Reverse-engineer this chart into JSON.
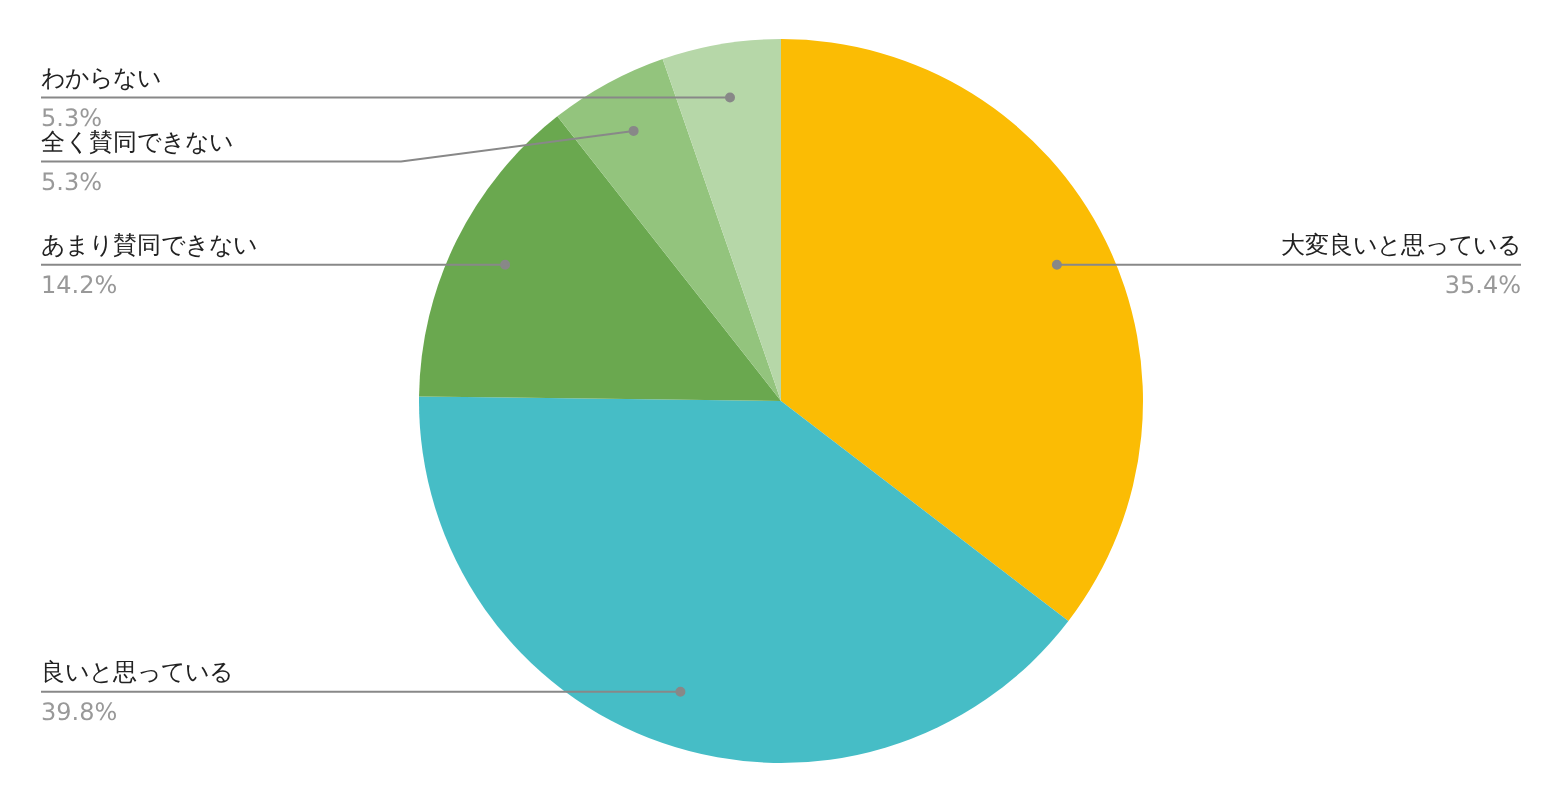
{
  "chart_data": {
    "type": "pie",
    "categories": [
      "大変良いと思っている",
      "良いと思っている",
      "あまり賛同できない",
      "全く賛同できない",
      "わからない"
    ],
    "values": [
      35.4,
      39.8,
      14.2,
      5.3,
      5.3
    ],
    "colors": [
      "#fbbc04",
      "#46bdc6",
      "#6aa84f",
      "#93c47d",
      "#b6d7a8"
    ],
    "value_labels": [
      "35.4%",
      "39.8%",
      "14.2%",
      "5.3%",
      "5.3%"
    ]
  }
}
